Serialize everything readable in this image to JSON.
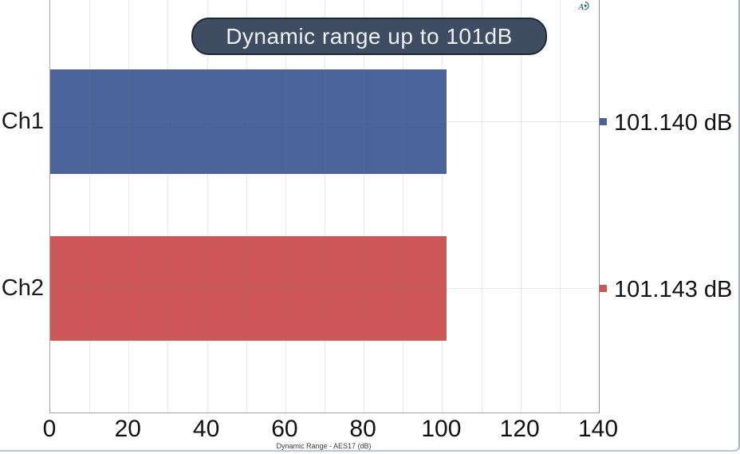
{
  "title": {
    "text": "Dynamic range up to 101dB"
  },
  "logo": {
    "name": "ap-logo",
    "text": "AP",
    "color": "#2d6ca3"
  },
  "chart_data": {
    "type": "bar",
    "orientation": "horizontal",
    "title": "Dynamic range up to 101dB",
    "xlabel": "Dynamic Range - AES17 (dB)",
    "categories": [
      "Ch1",
      "Ch2"
    ],
    "values": [
      101.14,
      101.143
    ],
    "value_labels": [
      "101.140 dB",
      "101.143 dB"
    ],
    "colors": [
      "#4a639b",
      "#cd5757"
    ],
    "xlim": [
      0,
      140
    ],
    "x_major_ticks": [
      0,
      20,
      40,
      60,
      80,
      100,
      120,
      140
    ],
    "x_minor_step": 10,
    "grid": true,
    "legend_position": "right"
  },
  "palette": {
    "bar_blue": "#4a639b",
    "bar_red": "#cd5757",
    "title_bg": "#3f4d63",
    "title_border": "#1c2836",
    "title_text": "#eef0f3",
    "gridline": "#e9e9e9",
    "axis_line": "#a6a6a6",
    "frame_bottom": "#b6c8d6"
  }
}
